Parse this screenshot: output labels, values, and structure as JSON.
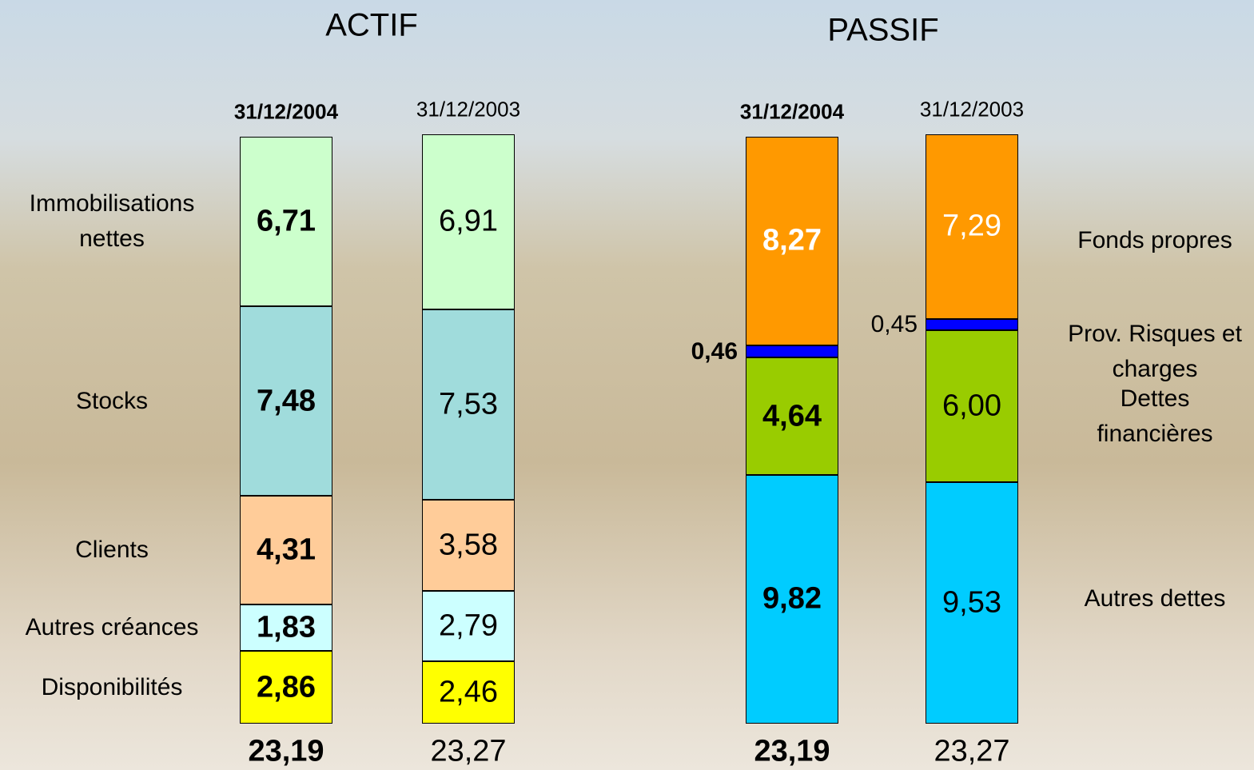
{
  "chart_data": [
    {
      "type": "bar",
      "stacked": true,
      "title": "ACTIF",
      "categories": [
        "31/12/2004",
        "31/12/2003"
      ],
      "series": [
        {
          "name": "Immobilisations nettes",
          "color": "#ccffcc",
          "values": [
            6.71,
            6.91
          ],
          "value_labels": [
            "6,71",
            "6,91"
          ]
        },
        {
          "name": "Stocks",
          "color": "#a0dcdc",
          "values": [
            7.48,
            7.53
          ],
          "value_labels": [
            "7,48",
            "7,53"
          ]
        },
        {
          "name": "Clients",
          "color": "#ffcc99",
          "values": [
            4.31,
            3.58
          ],
          "value_labels": [
            "4,31",
            "3,58"
          ]
        },
        {
          "name": "Autres créances",
          "color": "#ccffff",
          "values": [
            1.83,
            2.79
          ],
          "value_labels": [
            "1,83",
            "2,79"
          ]
        },
        {
          "name": "Disponibilités",
          "color": "#ffff00",
          "values": [
            2.86,
            2.46
          ],
          "value_labels": [
            "2,86",
            "2,46"
          ]
        }
      ],
      "totals": [
        23.19,
        23.27
      ],
      "total_labels": [
        "23,19",
        "23,27"
      ]
    },
    {
      "type": "bar",
      "stacked": true,
      "title": "PASSIF",
      "categories": [
        "31/12/2004",
        "31/12/2003"
      ],
      "series": [
        {
          "name": "Fonds propres",
          "color": "#ff9900",
          "label_color": "#ffffff",
          "values": [
            8.27,
            7.29
          ],
          "value_labels": [
            "8,27",
            "7,29"
          ]
        },
        {
          "name": "Prov. Risques et charges",
          "color": "#0000ff",
          "values": [
            0.46,
            0.45
          ],
          "value_labels": [
            "0,46",
            "0,45"
          ]
        },
        {
          "name": "Dettes financières",
          "color": "#99cc00",
          "values": [
            4.64,
            6.0
          ],
          "value_labels": [
            "4,64",
            "6,00"
          ]
        },
        {
          "name": "Autres dettes",
          "color": "#00ccff",
          "values": [
            9.82,
            9.53
          ],
          "value_labels": [
            "9,82",
            "9,53"
          ]
        }
      ],
      "totals": [
        23.19,
        23.27
      ],
      "total_labels": [
        "23,19",
        "23,27"
      ]
    }
  ]
}
